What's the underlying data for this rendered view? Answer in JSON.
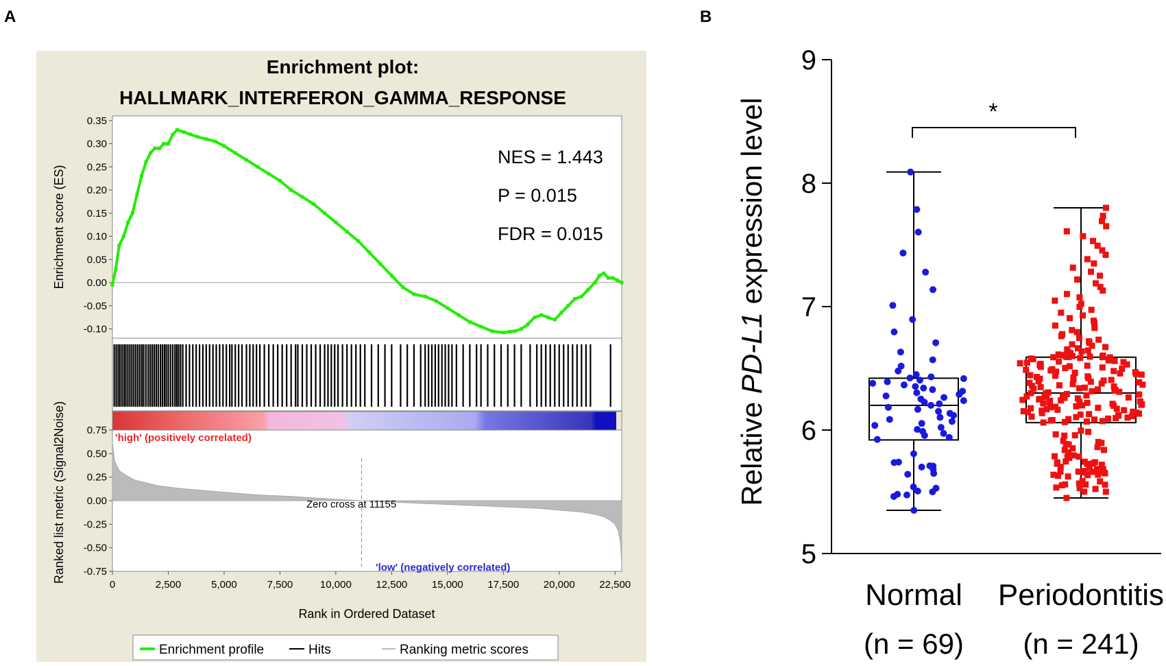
{
  "panelA": {
    "label": "A",
    "title_line1": "Enrichment plot:",
    "title_line2": "HALLMARK_INTERFERON_GAMMA_RESPONSE",
    "stats": {
      "nes": "NES = 1.443",
      "p": "P = 0.015",
      "fdr": "FDR = 0.015"
    },
    "es_axis_label": "Enrichment score (ES)",
    "metric_axis_label": "Ranked list metric (Signal2Noise)",
    "x_axis_label": "Rank in Ordered Dataset",
    "high_label": "'high' (positively correlated)",
    "low_label": "'low' (negatively correlated)",
    "zero_cross_label": "Zero cross at 11155",
    "legend": {
      "profile": "Enrichment profile",
      "hits": "Hits",
      "ranking": "Ranking metric scores"
    },
    "colors": {
      "profile": "#22ee00",
      "background": "#ece9d8",
      "hits": "#000000",
      "ranking": "#bbbbbb",
      "high": "#e8262a",
      "low": "#2a2ad0"
    }
  },
  "panelB": {
    "label": "B",
    "y_axis_prefix": "Relative ",
    "y_axis_gene": "PD-L1",
    "y_axis_suffix": " expression level",
    "significance": "*",
    "groups": [
      {
        "name": "Normal",
        "n_label": "(n = 69)"
      },
      {
        "name": "Periodontitis",
        "n_label": "(n = 241)"
      }
    ],
    "colors": {
      "normal": "#1a1adc",
      "periodontitis": "#ee1111"
    }
  },
  "chart_data": [
    {
      "type": "line",
      "title": "Enrichment plot: HALLMARK_INTERFERON_GAMMA_RESPONSE",
      "xlabel": "Rank in Ordered Dataset",
      "ylabel": "Enrichment score (ES)",
      "xlim": [
        0,
        22800
      ],
      "ylim": [
        -0.12,
        0.36
      ],
      "xticks": [
        0,
        2500,
        5000,
        7500,
        10000,
        12500,
        15000,
        17500,
        20000,
        22500
      ],
      "xtick_labels": [
        "0",
        "2,500",
        "5,000",
        "7,500",
        "10,000",
        "12,500",
        "15,000",
        "17,500",
        "20,000",
        "22,500"
      ],
      "yticks": [
        -0.1,
        -0.05,
        0.0,
        0.05,
        0.1,
        0.15,
        0.2,
        0.25,
        0.3,
        0.35
      ],
      "ytick_labels": [
        "-0.10",
        "-0.05",
        "0.00",
        "0.05",
        "0.10",
        "0.15",
        "0.20",
        "0.25",
        "0.30",
        "0.35"
      ],
      "series": [
        {
          "name": "Enrichment profile",
          "x": [
            0,
            150,
            300,
            500,
            700,
            900,
            1100,
            1300,
            1500,
            1700,
            1900,
            2100,
            2300,
            2500,
            2700,
            2900,
            3200,
            3500,
            3800,
            4200,
            4600,
            5000,
            5500,
            6000,
            6500,
            7000,
            7500,
            8000,
            8500,
            9000,
            9500,
            10000,
            10500,
            11000,
            11500,
            12000,
            12500,
            13000,
            13500,
            14000,
            14500,
            15000,
            15500,
            16000,
            16500,
            17000,
            17500,
            17800,
            18000,
            18300,
            18600,
            18900,
            19200,
            19500,
            19800,
            20100,
            20400,
            20700,
            21000,
            21300,
            21600,
            21800,
            22000,
            22200,
            22400,
            22600,
            22800
          ],
          "values": [
            -0.005,
            0.03,
            0.08,
            0.1,
            0.13,
            0.15,
            0.19,
            0.23,
            0.26,
            0.28,
            0.29,
            0.29,
            0.3,
            0.3,
            0.32,
            0.33,
            0.325,
            0.32,
            0.315,
            0.31,
            0.305,
            0.295,
            0.28,
            0.265,
            0.25,
            0.235,
            0.22,
            0.2,
            0.185,
            0.17,
            0.15,
            0.13,
            0.11,
            0.09,
            0.065,
            0.04,
            0.015,
            -0.01,
            -0.025,
            -0.03,
            -0.04,
            -0.055,
            -0.07,
            -0.085,
            -0.095,
            -0.105,
            -0.108,
            -0.106,
            -0.105,
            -0.1,
            -0.09,
            -0.075,
            -0.07,
            -0.075,
            -0.08,
            -0.065,
            -0.05,
            -0.035,
            -0.03,
            -0.015,
            0.0,
            0.015,
            0.02,
            0.01,
            0.01,
            0.005,
            0.0
          ]
        }
      ],
      "annotations": [
        "NES = 1.443",
        "P = 0.015",
        "FDR = 0.015"
      ],
      "hits": [
        80,
        170,
        260,
        340,
        430,
        520,
        600,
        690,
        780,
        870,
        960,
        1050,
        1140,
        1230,
        1320,
        1400,
        1500,
        1600,
        1690,
        1780,
        1870,
        1960,
        2050,
        2150,
        2240,
        2330,
        2410,
        2500,
        2600,
        2700,
        2800,
        2880,
        2960,
        3050,
        3150,
        3300,
        3450,
        3600,
        3750,
        3900,
        4050,
        4200,
        4350,
        4500,
        4650,
        4800,
        4950,
        5100,
        5250,
        5350,
        5500,
        5650,
        5800,
        6000,
        6150,
        6300,
        6450,
        6600,
        6800,
        7000,
        7200,
        7400,
        7600,
        7800,
        8000,
        8200,
        8300,
        8500,
        8700,
        8900,
        9100,
        9300,
        9500,
        9650,
        9800,
        9950,
        10100,
        10300,
        10500,
        10700,
        10900,
        11100,
        11300,
        11600,
        11900,
        12200,
        12500,
        12900,
        13200,
        13500,
        13800,
        14000,
        14150,
        14300,
        14450,
        14600,
        14750,
        14900,
        15050,
        15200,
        15400,
        15700,
        16000,
        16300,
        16500,
        16800,
        17100,
        17400,
        17700,
        18000,
        18300,
        18700,
        19000,
        19200,
        19400,
        19600,
        19800,
        20000,
        20200,
        20400,
        20600,
        20800,
        21000,
        21200,
        21400,
        22300
      ]
    },
    {
      "type": "area",
      "title": "Ranked list metric",
      "xlabel": "Rank in Ordered Dataset",
      "ylabel": "Ranked list metric (Signal2Noise)",
      "xlim": [
        0,
        22800
      ],
      "ylim": [
        -0.75,
        0.75
      ],
      "yticks": [
        -0.75,
        -0.5,
        -0.25,
        0.0,
        0.25,
        0.5,
        0.75
      ],
      "ytick_labels": [
        "-0.75",
        "-0.50",
        "-0.25",
        "0.00",
        "0.25",
        "0.50",
        "0.75"
      ],
      "zero_cross": 11155,
      "series": [
        {
          "name": "Ranking metric scores",
          "x": [
            0,
            100,
            300,
            600,
            1000,
            1500,
            2000,
            3000,
            4000,
            5000,
            6000,
            7000,
            8000,
            9000,
            10000,
            11155,
            12000,
            13000,
            14000,
            15000,
            16000,
            17000,
            18000,
            19000,
            20000,
            21000,
            21500,
            22000,
            22300,
            22500,
            22650,
            22750,
            22800
          ],
          "values": [
            0.62,
            0.42,
            0.32,
            0.27,
            0.22,
            0.19,
            0.16,
            0.13,
            0.11,
            0.09,
            0.07,
            0.055,
            0.045,
            0.03,
            0.015,
            0.0,
            -0.01,
            -0.02,
            -0.03,
            -0.04,
            -0.05,
            -0.06,
            -0.07,
            -0.08,
            -0.1,
            -0.12,
            -0.14,
            -0.17,
            -0.21,
            -0.25,
            -0.32,
            -0.45,
            -0.7
          ]
        }
      ]
    },
    {
      "type": "scatter",
      "title": "",
      "xlabel": "",
      "ylabel": "Relative PD-L1 expression level",
      "categories": [
        "Normal",
        "Periodontitis"
      ],
      "ylim": [
        5,
        9
      ],
      "yticks": [
        5,
        6,
        7,
        8,
        9
      ],
      "ytick_labels": [
        "5",
        "6",
        "7",
        "8",
        "9"
      ],
      "series": [
        {
          "name": "Normal",
          "n": 69,
          "box": {
            "min": 5.35,
            "q1": 5.92,
            "median": 6.2,
            "q3": 6.42,
            "max": 8.09
          }
        },
        {
          "name": "Periodontitis",
          "n": 241,
          "box": {
            "min": 5.45,
            "q1": 6.06,
            "median": 6.3,
            "q3": 6.59,
            "max": 7.8
          }
        }
      ],
      "annotations": [
        "*"
      ]
    }
  ]
}
